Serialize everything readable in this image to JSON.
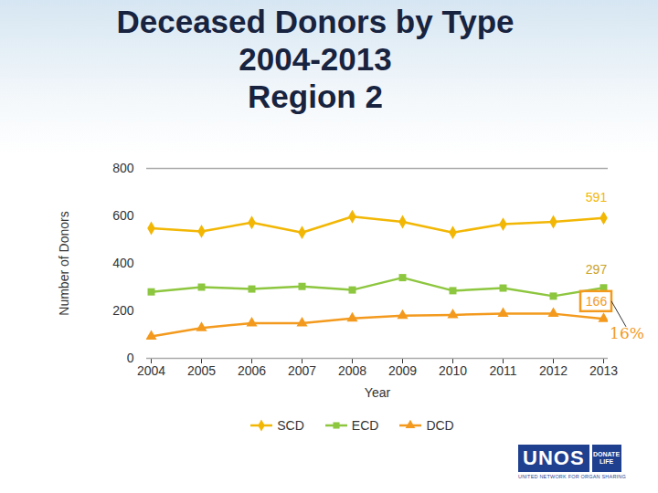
{
  "chart_data": {
    "type": "line",
    "title": "Deceased Donors by Type\n2004-2013\nRegion 2",
    "x_label": "Year",
    "y_label": "Number of Donors",
    "x": [
      2004,
      2005,
      2006,
      2007,
      2008,
      2009,
      2010,
      2011,
      2012,
      2013
    ],
    "series": [
      {
        "name": "SCD",
        "color": "#f2b705",
        "marker": "diamond",
        "values": [
          548,
          535,
          572,
          530,
          597,
          575,
          530,
          565,
          575,
          591
        ]
      },
      {
        "name": "ECD",
        "color": "#8dc63f",
        "marker": "square",
        "values": [
          280,
          300,
          292,
          303,
          288,
          340,
          285,
          296,
          262,
          297
        ]
      },
      {
        "name": "DCD",
        "color": "#f39a1e",
        "marker": "triangle",
        "values": [
          92,
          128,
          148,
          148,
          168,
          180,
          183,
          188,
          188,
          166
        ]
      }
    ],
    "ylim": [
      0,
      800
    ],
    "yticks": [
      0,
      200,
      400,
      600,
      800
    ],
    "grid": false,
    "legend": "bottom",
    "annotations": [
      {
        "text": "591",
        "series": "SCD"
      },
      {
        "text": "297",
        "series": "ECD"
      },
      {
        "text": "166",
        "series": "DCD"
      },
      {
        "text": "16%"
      }
    ],
    "logo": [
      "UNOS",
      "DONATE LIFE",
      "UNITED NETWORK FOR ORGAN SHARING"
    ]
  }
}
